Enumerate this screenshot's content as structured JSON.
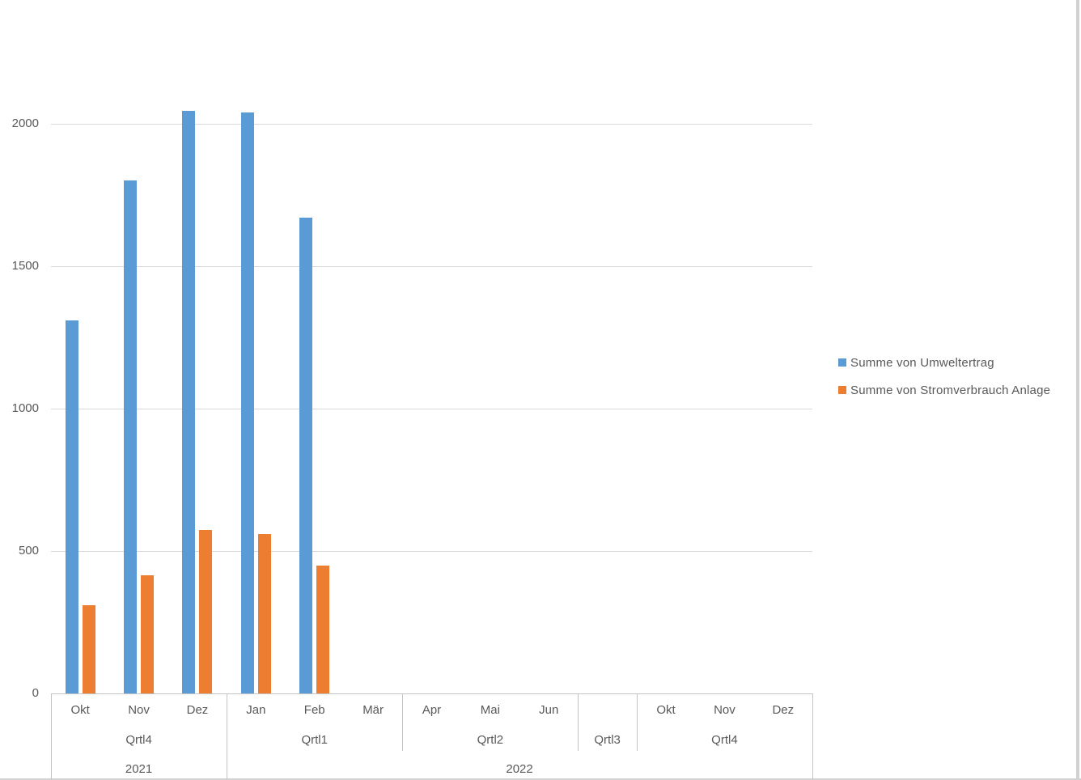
{
  "chart_data": {
    "type": "bar",
    "title": "",
    "legend_position": "right",
    "grid": true,
    "y_axis": {
      "ticks": [
        0,
        500,
        1000,
        1500,
        2000
      ],
      "min": 0,
      "max": 2000
    },
    "x_axis": {
      "years": [
        {
          "label": "2021",
          "quarters": [
            {
              "label": "Qrtl4",
              "months": [
                "Okt",
                "Nov",
                "Dez"
              ]
            }
          ]
        },
        {
          "label": "2022",
          "quarters": [
            {
              "label": "Qrtl1",
              "months": [
                "Jan",
                "Feb",
                "Mär"
              ]
            },
            {
              "label": "Qrtl2",
              "months": [
                "Apr",
                "Mai",
                "Jun"
              ]
            },
            {
              "label": "Qrtl3",
              "months": [
                ""
              ]
            },
            {
              "label": "Qrtl4",
              "months": [
                "Okt",
                "Nov",
                "Dez"
              ]
            }
          ]
        }
      ]
    },
    "series": [
      {
        "name": "Summe von Umweltertrag",
        "color": "#5B9BD5",
        "values": [
          1310,
          1800,
          2045,
          2040,
          1670,
          null,
          null,
          null,
          null,
          null,
          null,
          null,
          null
        ]
      },
      {
        "name": "Summe von Stromverbrauch Anlage",
        "color": "#ED7D31",
        "values": [
          310,
          415,
          575,
          560,
          450,
          null,
          null,
          null,
          null,
          null,
          null,
          null,
          null
        ]
      }
    ]
  },
  "colors": {
    "gridline": "#D9D9D9",
    "axis_line": "#C4C4C4",
    "label_text": "#595959",
    "window_edge": "#D2D2D2"
  }
}
